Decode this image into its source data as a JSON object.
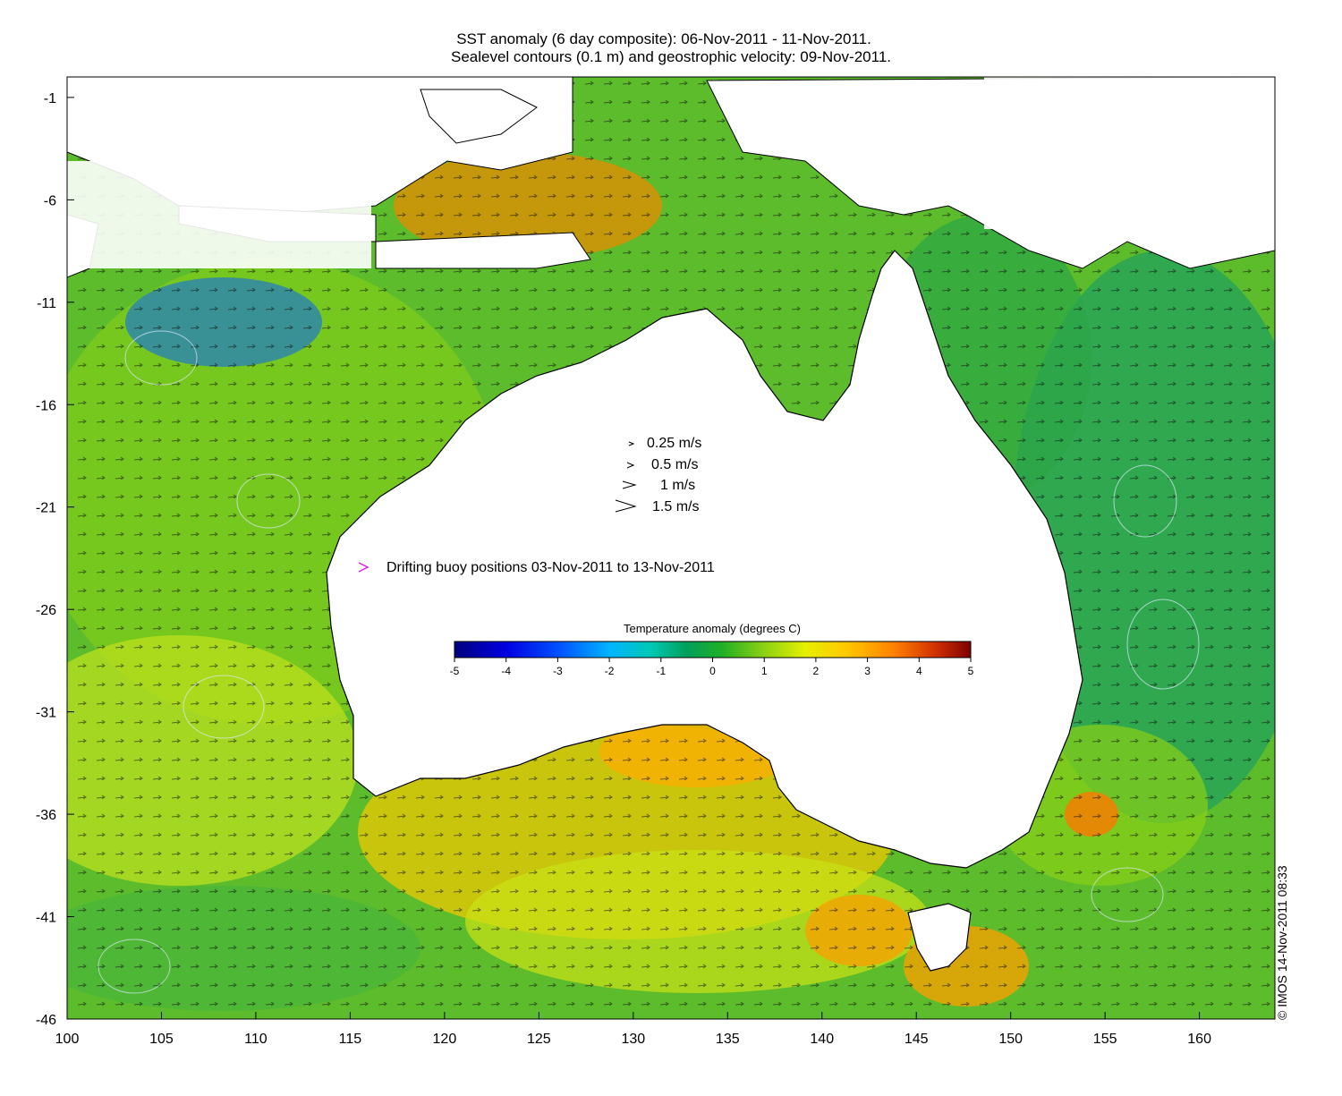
{
  "title": {
    "line1": "SST anomaly (6 day composite): 06-Nov-2011 - 11-Nov-2011.",
    "line2": "Sealevel contours (0.1 m) and geostrophic velocity: 09-Nov-2011."
  },
  "axes": {
    "x_ticks": [
      "100",
      "105",
      "110",
      "115",
      "120",
      "125",
      "130",
      "135",
      "140",
      "145",
      "150",
      "155",
      "160"
    ],
    "y_ticks": [
      "-1",
      "-6",
      "-11",
      "-16",
      "-21",
      "-26",
      "-31",
      "-36",
      "-41",
      "-46"
    ],
    "lon_range": [
      100,
      164
    ],
    "lat_range": [
      -46,
      0
    ]
  },
  "velocity_legend": [
    {
      "label": "0.25 m/s",
      "speed": 0.25
    },
    {
      "label": "0.5 m/s",
      "speed": 0.5
    },
    {
      "label": "1 m/s",
      "speed": 1
    },
    {
      "label": "1.5 m/s",
      "speed": 1.5
    }
  ],
  "buoy_legend": {
    "label": "Drifting buoy positions 03-Nov-2011 to 13-Nov-2011",
    "marker_color": "#e020e0"
  },
  "colorbar": {
    "title": "Temperature anomaly (degrees C)",
    "ticks": [
      "-5",
      "-4",
      "-3",
      "-2",
      "-1",
      "0",
      "1",
      "2",
      "3",
      "4",
      "5"
    ],
    "range": [
      -5,
      5
    ],
    "colors": [
      "#00007f",
      "#0000ff",
      "#007fff",
      "#00ffff",
      "#00a05a",
      "#22b024",
      "#b4e60a",
      "#ffff00",
      "#ffb400",
      "#ff6400",
      "#cc2200",
      "#7f0000"
    ]
  },
  "credit": "© IMOS 14-Nov-2011 08:33",
  "colors": {
    "land": "#ffffff",
    "sea_base": "#5cbc2c",
    "coast": "#000000"
  }
}
